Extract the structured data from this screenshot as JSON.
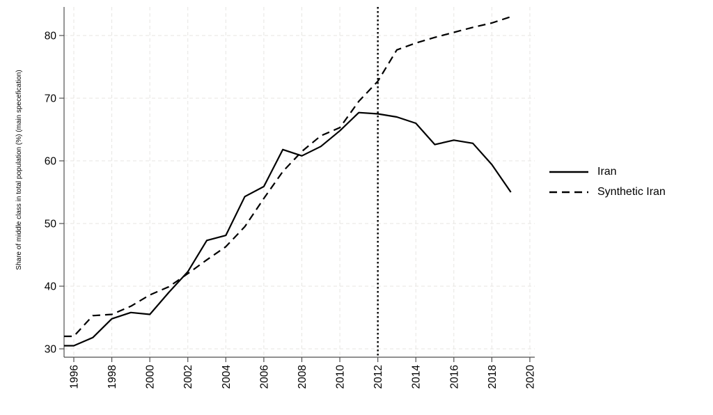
{
  "chart_data": {
    "type": "line",
    "title": "",
    "xlabel": "",
    "ylabel": "Share of middle class in total population (%) (main specefication)",
    "x": [
      1996,
      1997,
      1998,
      1999,
      2000,
      2001,
      2002,
      2003,
      2004,
      2005,
      2006,
      2007,
      2008,
      2009,
      2010,
      2011,
      2012,
      2013,
      2014,
      2015,
      2016,
      2017,
      2018,
      2019
    ],
    "series": [
      {
        "name": "Iran",
        "style": "solid",
        "color": "#000000",
        "values": [
          30.5,
          31.8,
          34.8,
          35.8,
          35.5,
          39.0,
          42.3,
          47.3,
          48.1,
          54.3,
          55.9,
          61.8,
          60.8,
          62.3,
          64.8,
          67.7,
          67.5,
          67.0,
          66.0,
          62.6,
          63.3,
          62.8,
          59.4,
          55.0
        ]
      },
      {
        "name": "Synthetic Iran",
        "style": "dashed",
        "color": "#000000",
        "values": [
          32.0,
          35.3,
          35.5,
          36.8,
          38.6,
          39.9,
          42.0,
          44.2,
          46.3,
          49.5,
          54.0,
          58.3,
          61.5,
          64.0,
          65.3,
          69.5,
          72.7,
          77.7,
          78.8,
          79.7,
          80.5,
          81.3,
          82.0,
          83.0
        ]
      }
    ],
    "x_ticks": [
      1996,
      1998,
      2000,
      2002,
      2004,
      2006,
      2008,
      2010,
      2012,
      2014,
      2016,
      2018,
      2020
    ],
    "y_ticks": [
      30,
      40,
      50,
      60,
      70,
      80
    ],
    "xlim": [
      1995.5,
      2020.3
    ],
    "ylim": [
      28.7,
      84.6
    ],
    "grid": true,
    "legend_position": "right",
    "annotations": [
      {
        "type": "vline",
        "x": 2012,
        "style": "dotted",
        "color": "#000000"
      }
    ]
  },
  "colors": {
    "line": "#000000",
    "axis": "#4f4f4f",
    "gridline": "#e7e5e2",
    "background": "#ffffff"
  }
}
